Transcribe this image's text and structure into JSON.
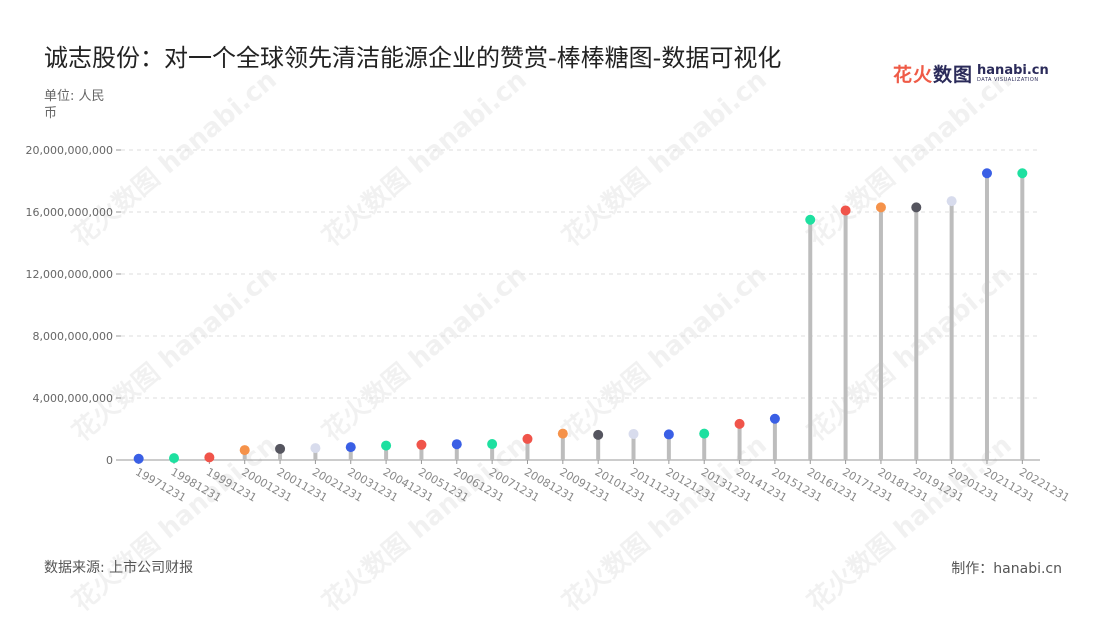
{
  "title": "诚志股份：对一个全球领先清洁能源企业的赞赏-棒棒糖图-数据可视化",
  "unit_label": "单位: 人民币",
  "source_label": "数据来源: 上市公司财报",
  "credit_label": "制作：hanabi.cn",
  "logo": {
    "cn_prefix": "花火",
    "cn_suffix": "数图",
    "domain": "hanabi.cn",
    "tagline": "DATA VISUALIZATION",
    "brand_color": "#2b2b5a",
    "accent_color": "#ef5b47"
  },
  "watermark": "花火数图 hanabi.cn",
  "chart_data": {
    "type": "lollipop",
    "title": "诚志股份：对一个全球领先清洁能源企业的赞赏-棒棒糖图-数据可视化",
    "ylabel": "单位: 人民币",
    "ylim": [
      0,
      20000000000
    ],
    "yticks": [
      0,
      4000000000,
      8000000000,
      12000000000,
      16000000000,
      20000000000
    ],
    "ytick_labels": [
      "0",
      "4,000,000,000",
      "8,000,000,000",
      "12,000,000,000",
      "16,000,000,000",
      "20,000,000,000"
    ],
    "grid": true,
    "stem_color": "#bdbdbd",
    "categories": [
      "19971231",
      "19981231",
      "19991231",
      "20001231",
      "20011231",
      "20021231",
      "20031231",
      "20041231",
      "20051231",
      "20061231",
      "20071231",
      "20081231",
      "20091231",
      "20101231",
      "20111231",
      "20121231",
      "20131231",
      "20141231",
      "20151231",
      "20161231",
      "20171231",
      "20181231",
      "20191231",
      "20201231",
      "20211231",
      "20221231"
    ],
    "values": [
      80000000,
      120000000,
      170000000,
      640000000,
      720000000,
      770000000,
      830000000,
      930000000,
      980000000,
      1020000000,
      1030000000,
      1360000000,
      1700000000,
      1620000000,
      1680000000,
      1650000000,
      1700000000,
      2330000000,
      2660000000,
      15500000000,
      16100000000,
      16300000000,
      16300000000,
      16700000000,
      18500000000,
      18500000000
    ],
    "colors": [
      "#3a5fe5",
      "#1ee0a0",
      "#f0544a",
      "#f5924a",
      "#55555f",
      "#d8dced",
      "#3a5fe5",
      "#1ee0a0",
      "#f0544a",
      "#3a5fe5",
      "#1ee0a0",
      "#f0544a",
      "#f5924a",
      "#55555f",
      "#d8dced",
      "#3a5fe5",
      "#1ee0a0",
      "#f0544a",
      "#3a5fe5",
      "#1ee0a0",
      "#f0544a",
      "#f5924a",
      "#55555f",
      "#d8dced",
      "#3a5fe5",
      "#1ee0a0"
    ]
  }
}
